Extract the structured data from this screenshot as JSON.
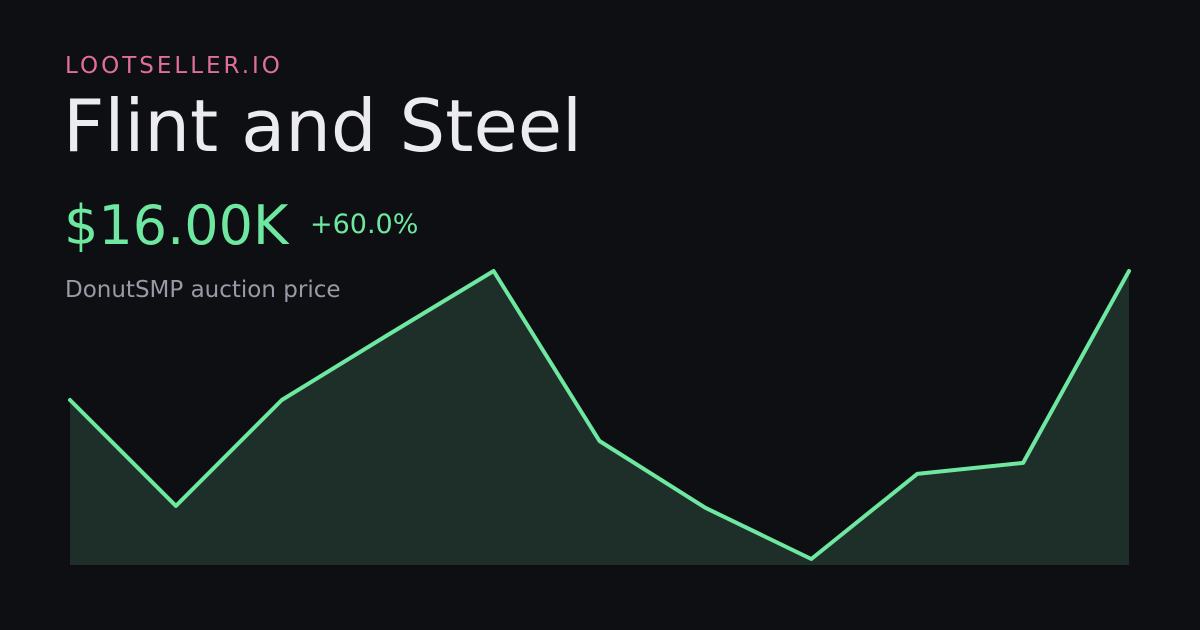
{
  "header": {
    "brand": "LOOTSELLER.IO",
    "title": "Flint and Steel",
    "price": {
      "value": 16000,
      "label": "$16.00K"
    },
    "change": {
      "value": 60,
      "label": "+60.0%"
    },
    "subtitle": "DonutSMP auction price"
  },
  "chart_data": {
    "type": "area",
    "color": "#6ee7a0",
    "fill": "#1e2e29",
    "values": [
      10000,
      5070,
      10000,
      13020,
      16000,
      8090,
      4980,
      2600,
      6560,
      7070,
      16000
    ]
  }
}
